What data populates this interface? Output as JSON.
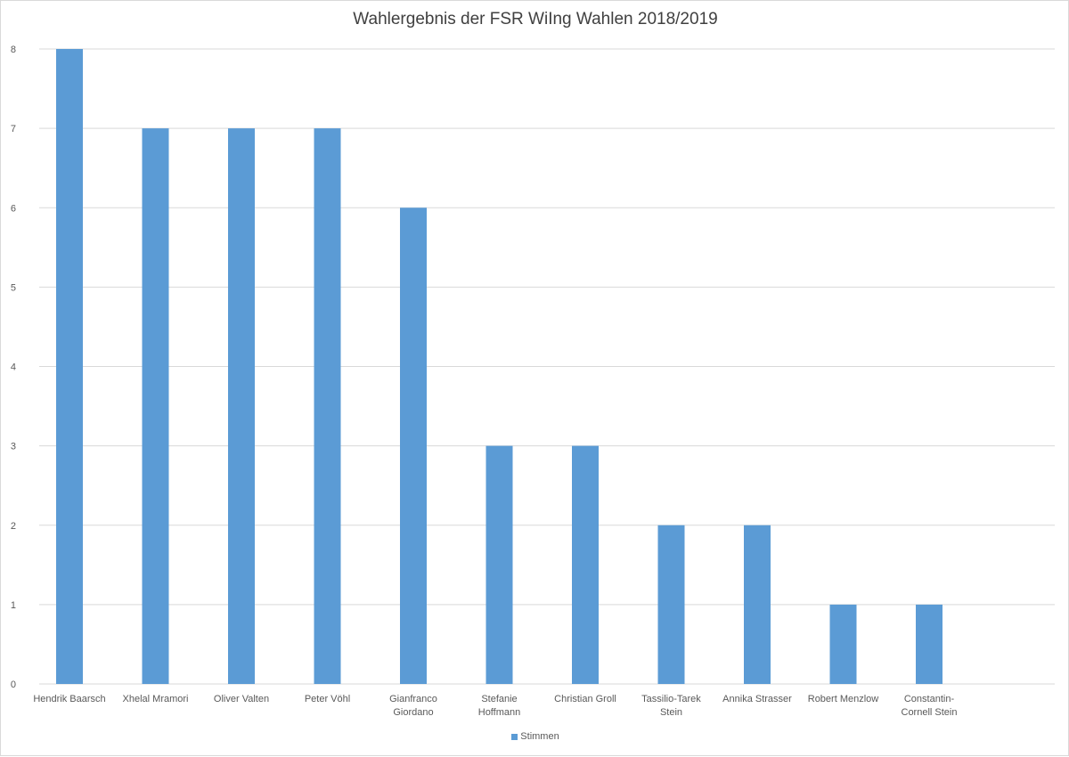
{
  "chart_data": {
    "type": "bar",
    "title": "Wahlergebnis der FSR WiIng Wahlen 2018/2019",
    "categories": [
      [
        "Hendrik Baarsch"
      ],
      [
        "Xhelal Mramori"
      ],
      [
        "Oliver Valten"
      ],
      [
        "Peter Vöhl"
      ],
      [
        "Gianfranco",
        "Giordano"
      ],
      [
        "Stefanie",
        "Hoffmann"
      ],
      [
        "Christian Groll"
      ],
      [
        "Tassilio-Tarek",
        "Stein"
      ],
      [
        "Annika Strasser"
      ],
      [
        "Robert Menzlow"
      ],
      [
        "Constantin-",
        "Cornell Stein"
      ]
    ],
    "series": [
      {
        "name": "Stimmen",
        "values": [
          8,
          7,
          7,
          7,
          6,
          3,
          3,
          2,
          2,
          1,
          1
        ]
      }
    ],
    "ylim": [
      0,
      8
    ],
    "yticks": [
      0,
      1,
      2,
      3,
      4,
      5,
      6,
      7,
      8
    ],
    "grid": true,
    "legend_position": "bottom",
    "colors": {
      "bar": "#5b9bd5",
      "grid": "#d9d9d9",
      "text": "#595959"
    }
  }
}
